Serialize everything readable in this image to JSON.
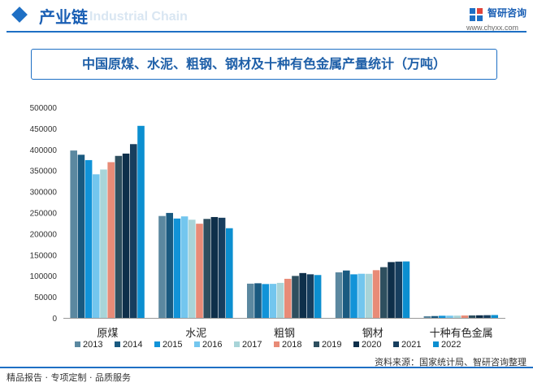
{
  "header": {
    "section_title": "产业链",
    "bg_watermark": "Industrial Chain",
    "logo_name": "智研咨询",
    "logo_url": "www.chyxx.com"
  },
  "chart_data": {
    "type": "bar",
    "title": "中国原煤、水泥、粗钢、钢材及十种有色金属产量统计（万吨）",
    "categories": [
      "原煤",
      "水泥",
      "粗钢",
      "钢材",
      "十种有色金属"
    ],
    "ylim": [
      0,
      500000
    ],
    "yticks": [
      "0",
      "50000",
      "100000",
      "150000",
      "200000",
      "250000",
      "300000",
      "350000",
      "400000",
      "450000",
      "500000"
    ],
    "grid": false,
    "legend_position": "bottom",
    "series": [
      {
        "name": "2013",
        "color": "#5b88a0",
        "values": [
          397432,
          241924,
          81314,
          108201,
          4029
        ]
      },
      {
        "name": "2014",
        "color": "#1a5a80",
        "values": [
          387392,
          249207,
          82231,
          112513,
          4380
        ]
      },
      {
        "name": "2015",
        "color": "#1193d8",
        "values": [
          374654,
          235919,
          80383,
          103468,
          5090
        ]
      },
      {
        "name": "2016",
        "color": "#73c6ee",
        "values": [
          341000,
          241000,
          80837,
          104813,
          5283
        ]
      },
      {
        "name": "2017",
        "color": "#a8d4d8",
        "values": [
          352356,
          233084,
          83173,
          104642,
          5378
        ]
      },
      {
        "name": "2018",
        "color": "#e88b77",
        "values": [
          369774,
          223610,
          92826,
          113287,
          5703
        ]
      },
      {
        "name": "2019",
        "color": "#2e4f5f",
        "values": [
          384633,
          235013,
          99634,
          120457,
          5866
        ]
      },
      {
        "name": "2020",
        "color": "#0e2f4a",
        "values": [
          390158,
          239470,
          106477,
          132489,
          6168
        ]
      },
      {
        "name": "2021",
        "color": "#173e5e",
        "values": [
          412600,
          237800,
          103524,
          133667,
          6454
        ]
      },
      {
        "name": "2022",
        "color": "#0c8fd0",
        "values": [
          456000,
          212927,
          101796,
          134034,
          6793
        ]
      }
    ]
  },
  "footer": {
    "left_text": "精品报告 · 专项定制 · 品质服务",
    "source": "资料来源：国家统计局、智研咨询整理"
  }
}
